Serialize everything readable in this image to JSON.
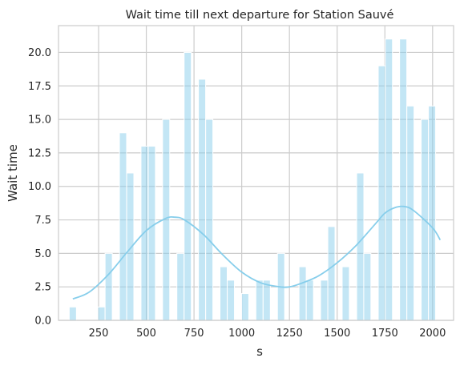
{
  "chart_data": {
    "type": "bar",
    "title": "Wait time till next departure for Station Sauvé",
    "xlabel": "s",
    "ylabel": "Wait time",
    "xlim": [
      40,
      2110
    ],
    "ylim": [
      0,
      22
    ],
    "x_ticks": [
      250,
      500,
      750,
      1000,
      1250,
      1500,
      1750,
      2000
    ],
    "y_ticks": [
      "0.0",
      "2.5",
      "5.0",
      "7.5",
      "10.0",
      "12.5",
      "15.0",
      "17.5",
      "20.0"
    ],
    "bin_width": 37.6,
    "grid": true,
    "colors": {
      "bar": "#87CEEB",
      "kde": "#87CEEB",
      "grid": "#cccccc",
      "frame": "#cccccc"
    },
    "bars": [
      {
        "x": 115,
        "value": 1
      },
      {
        "x": 265,
        "value": 1
      },
      {
        "x": 303,
        "value": 5
      },
      {
        "x": 378,
        "value": 14
      },
      {
        "x": 416,
        "value": 11
      },
      {
        "x": 491,
        "value": 13
      },
      {
        "x": 529,
        "value": 13
      },
      {
        "x": 604,
        "value": 15
      },
      {
        "x": 679,
        "value": 5
      },
      {
        "x": 717,
        "value": 20
      },
      {
        "x": 792,
        "value": 18
      },
      {
        "x": 830,
        "value": 15
      },
      {
        "x": 905,
        "value": 4
      },
      {
        "x": 943,
        "value": 3
      },
      {
        "x": 1018,
        "value": 2
      },
      {
        "x": 1093,
        "value": 3
      },
      {
        "x": 1131,
        "value": 3
      },
      {
        "x": 1206,
        "value": 5
      },
      {
        "x": 1319,
        "value": 4
      },
      {
        "x": 1357,
        "value": 3
      },
      {
        "x": 1432,
        "value": 3
      },
      {
        "x": 1470,
        "value": 7
      },
      {
        "x": 1545,
        "value": 4
      },
      {
        "x": 1621,
        "value": 11
      },
      {
        "x": 1658,
        "value": 5
      },
      {
        "x": 1734,
        "value": 19
      },
      {
        "x": 1771,
        "value": 21
      },
      {
        "x": 1846,
        "value": 21
      },
      {
        "x": 1884,
        "value": 16
      },
      {
        "x": 1959,
        "value": 15
      },
      {
        "x": 1997,
        "value": 16
      }
    ],
    "kde_line": {
      "x": [
        115,
        200,
        300,
        400,
        500,
        600,
        650,
        700,
        800,
        900,
        1000,
        1100,
        1200,
        1250,
        1300,
        1400,
        1500,
        1600,
        1700,
        1750,
        1800,
        1850,
        1900,
        2000,
        2040
      ],
      "y": [
        1.6,
        2.1,
        3.4,
        5.1,
        6.7,
        7.6,
        7.7,
        7.5,
        6.4,
        4.9,
        3.6,
        2.8,
        2.5,
        2.5,
        2.7,
        3.3,
        4.3,
        5.6,
        7.2,
        8.0,
        8.4,
        8.5,
        8.2,
        6.9,
        6.0
      ]
    }
  }
}
